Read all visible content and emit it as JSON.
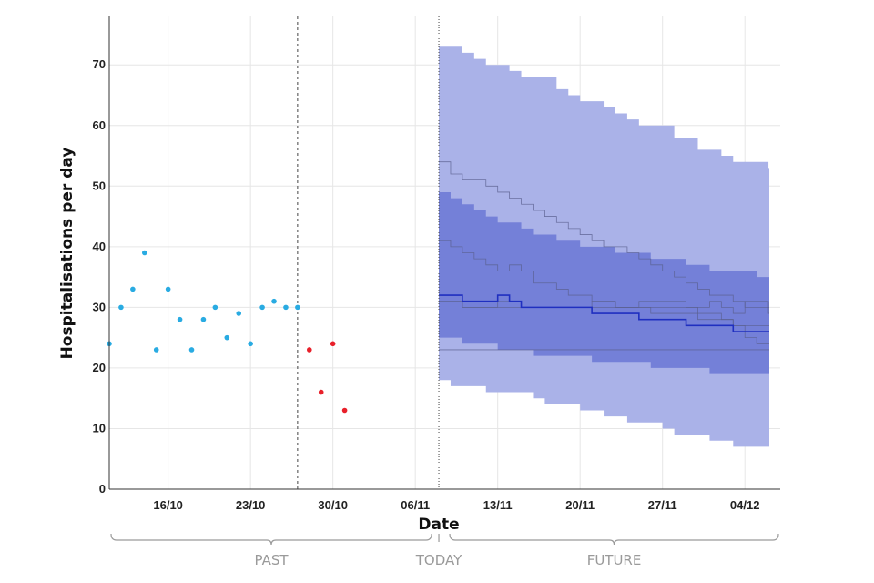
{
  "chart_data": {
    "type": "line",
    "xlabel": "Date",
    "ylabel": "Hospitalisations per day",
    "xlim": [
      "2020-10-11",
      "2020-12-07"
    ],
    "ylim": [
      0,
      78
    ],
    "x_ticks": [
      {
        "date": "2020-10-16",
        "label": "16/10"
      },
      {
        "date": "2020-10-23",
        "label": "23/10"
      },
      {
        "date": "2020-10-30",
        "label": "30/10"
      },
      {
        "date": "2020-11-06",
        "label": "06/11"
      },
      {
        "date": "2020-11-13",
        "label": "13/11"
      },
      {
        "date": "2020-11-20",
        "label": "20/11"
      },
      {
        "date": "2020-11-27",
        "label": "27/11"
      },
      {
        "date": "2020-12-04",
        "label": "04/12"
      }
    ],
    "y_ticks": [
      0,
      10,
      20,
      30,
      40,
      50,
      60,
      70
    ],
    "grid": true,
    "cutoff_date": "2020-10-27",
    "today_date": "2020-11-08",
    "phases": [
      {
        "label": "PAST",
        "start": "2020-10-11",
        "end": "2020-11-07"
      },
      {
        "label": "TODAY",
        "start": "2020-11-08",
        "end": "2020-11-08"
      },
      {
        "label": "FUTURE",
        "start": "2020-11-09",
        "end": "2020-12-06"
      }
    ],
    "observed": {
      "color": "#29abe2",
      "x": [
        "2020-10-11",
        "2020-10-12",
        "2020-10-13",
        "2020-10-14",
        "2020-10-15",
        "2020-10-16",
        "2020-10-17",
        "2020-10-18",
        "2020-10-19",
        "2020-10-20",
        "2020-10-21",
        "2020-10-22",
        "2020-10-23",
        "2020-10-24",
        "2020-10-25",
        "2020-10-26",
        "2020-10-27"
      ],
      "y": [
        24,
        30,
        33,
        39,
        23,
        33,
        28,
        23,
        28,
        30,
        25,
        29,
        24,
        30,
        31,
        30,
        30
      ]
    },
    "incomplete": {
      "color": "#e8202a",
      "x": [
        "2020-10-28",
        "2020-10-29",
        "2020-10-30",
        "2020-10-31"
      ],
      "y": [
        23,
        16,
        24,
        13
      ]
    },
    "forecast": {
      "color_outer": "#aab2e8",
      "color_inner": "#7480d8",
      "color_median": "#1f2fc0",
      "color_traj": "#5a5f8f",
      "x": [
        "2020-11-08",
        "2020-11-09",
        "2020-11-10",
        "2020-11-11",
        "2020-11-12",
        "2020-11-13",
        "2020-11-14",
        "2020-11-15",
        "2020-11-16",
        "2020-11-17",
        "2020-11-18",
        "2020-11-19",
        "2020-11-20",
        "2020-11-21",
        "2020-11-22",
        "2020-11-23",
        "2020-11-24",
        "2020-11-25",
        "2020-11-26",
        "2020-11-27",
        "2020-11-28",
        "2020-11-29",
        "2020-11-30",
        "2020-12-01",
        "2020-12-02",
        "2020-12-03",
        "2020-12-04",
        "2020-12-05",
        "2020-12-06"
      ],
      "outer_upper": [
        73,
        73,
        72,
        71,
        70,
        70,
        69,
        68,
        68,
        68,
        66,
        65,
        64,
        64,
        63,
        62,
        61,
        60,
        60,
        60,
        58,
        58,
        56,
        56,
        55,
        54,
        54,
        54,
        53
      ],
      "inner_upper": [
        49,
        48,
        47,
        46,
        45,
        44,
        44,
        43,
        42,
        42,
        41,
        41,
        40,
        40,
        40,
        39,
        39,
        39,
        38,
        38,
        38,
        37,
        37,
        36,
        36,
        36,
        36,
        35,
        35
      ],
      "median": [
        32,
        32,
        31,
        31,
        31,
        32,
        31,
        30,
        30,
        30,
        30,
        30,
        30,
        29,
        29,
        29,
        29,
        28,
        28,
        28,
        28,
        27,
        27,
        27,
        27,
        26,
        26,
        26,
        26
      ],
      "inner_lower": [
        25,
        25,
        24,
        24,
        24,
        23,
        23,
        23,
        22,
        22,
        22,
        22,
        22,
        21,
        21,
        21,
        21,
        21,
        20,
        20,
        20,
        20,
        20,
        19,
        19,
        19,
        19,
        19,
        19
      ],
      "outer_lower": [
        18,
        17,
        17,
        17,
        16,
        16,
        16,
        16,
        15,
        14,
        14,
        14,
        13,
        13,
        12,
        12,
        11,
        11,
        11,
        10,
        9,
        9,
        9,
        8,
        8,
        7,
        7,
        7,
        7
      ],
      "trajectories": [
        [
          54,
          52,
          51,
          51,
          50,
          49,
          48,
          47,
          46,
          45,
          44,
          43,
          42,
          41,
          40,
          40,
          39,
          38,
          37,
          36,
          35,
          34,
          33,
          32,
          32,
          31,
          30,
          30,
          29
        ],
        [
          41,
          40,
          39,
          38,
          37,
          36,
          37,
          36,
          34,
          34,
          33,
          32,
          32,
          31,
          31,
          30,
          30,
          30,
          29,
          29,
          29,
          29,
          28,
          28,
          28,
          27,
          27,
          27,
          27
        ],
        [
          31,
          31,
          30,
          30,
          30,
          31,
          31,
          30,
          30,
          30,
          30,
          30,
          30,
          31,
          31,
          30,
          30,
          31,
          31,
          31,
          31,
          30,
          30,
          31,
          30,
          29,
          31,
          31,
          30
        ],
        [
          23,
          23,
          23,
          23,
          23,
          23,
          23,
          23,
          23,
          23,
          23,
          23,
          23,
          23,
          23,
          23,
          23,
          23,
          23,
          23,
          23,
          23,
          23,
          23,
          23,
          23,
          23,
          23,
          23
        ],
        [
          31,
          31,
          30,
          30,
          30,
          30,
          30,
          30,
          30,
          30,
          30,
          30,
          30,
          30,
          30,
          30,
          30,
          30,
          30,
          30,
          30,
          30,
          29,
          29,
          28,
          27,
          25,
          24,
          24
        ]
      ]
    }
  }
}
